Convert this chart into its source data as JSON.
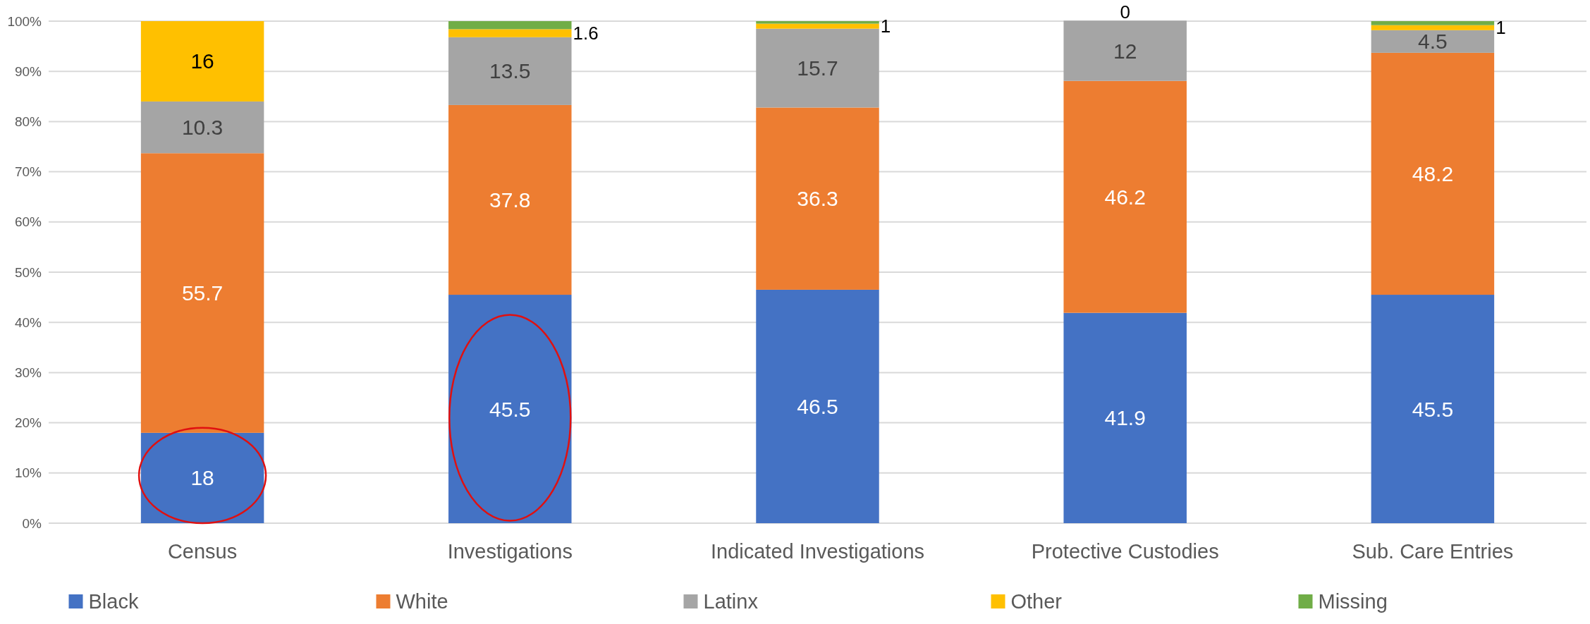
{
  "chart_data": {
    "type": "bar",
    "stacked": true,
    "categories": [
      "Census",
      "Investigations",
      "Indicated Investigations",
      "Protective Custodies",
      "Sub. Care Entries"
    ],
    "series": [
      {
        "name": "Black",
        "color": "#4472c4",
        "values": [
          18,
          45.5,
          46.5,
          41.9,
          45.5
        ],
        "value_labels": [
          "18",
          "45.5",
          "46.5",
          "41.9",
          "45.5"
        ]
      },
      {
        "name": "White",
        "color": "#ed7d31",
        "values": [
          55.7,
          37.8,
          36.3,
          46.2,
          48.2
        ],
        "value_labels": [
          "55.7",
          "37.8",
          "36.3",
          "46.2",
          "48.2"
        ]
      },
      {
        "name": "Latinx",
        "color": "#a5a5a5",
        "values": [
          10.3,
          13.5,
          15.7,
          12,
          4.5
        ],
        "value_labels": [
          "10.3",
          "13.5",
          "15.7",
          "12",
          "4.5"
        ]
      },
      {
        "name": "Other",
        "color": "#ffc000",
        "values": [
          16,
          1.6,
          1,
          0,
          1
        ],
        "value_labels": [
          "16",
          "1.6",
          "1",
          "0",
          "1"
        ]
      },
      {
        "name": "Missing",
        "color": "#70ad47",
        "values": [
          0,
          1.6,
          0.5,
          0,
          0.8
        ]
      }
    ],
    "ylim": [
      0,
      100
    ],
    "yticks": [
      {
        "value": 0,
        "label": "0%"
      },
      {
        "value": 10,
        "label": "10%"
      },
      {
        "value": 20,
        "label": "20%"
      },
      {
        "value": 30,
        "label": "30%"
      },
      {
        "value": 40,
        "label": "40%"
      },
      {
        "value": 50,
        "label": "50%"
      },
      {
        "value": 60,
        "label": "60%"
      },
      {
        "value": 70,
        "label": "70%"
      },
      {
        "value": 80,
        "label": "80%"
      },
      {
        "value": 90,
        "label": "90%"
      },
      {
        "value": 100,
        "label": "100%"
      }
    ],
    "grid": "y",
    "legend": "bottom"
  }
}
